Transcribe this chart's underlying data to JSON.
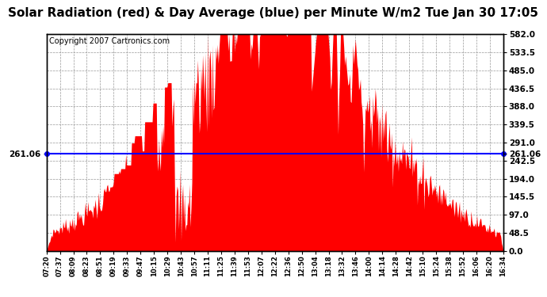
{
  "title": "Solar Radiation (red) & Day Average (blue) per Minute W/m2 Tue Jan 30 17:05",
  "copyright": "Copyright 2007 Cartronics.com",
  "y_left_label": "261.06",
  "y_right_label": "261.06",
  "y_right_ticks": [
    0.0,
    48.5,
    97.0,
    145.5,
    194.0,
    242.5,
    291.0,
    339.5,
    388.0,
    436.5,
    485.0,
    533.5,
    582.0
  ],
  "y_max": 582.0,
  "y_min": 0.0,
  "day_average": 261.06,
  "bar_color": "#FF0000",
  "average_line_color": "#0000FF",
  "background_color": "#FFFFFF",
  "plot_bg_color": "#FFFFFF",
  "grid_color": "#999999",
  "title_fontsize": 11,
  "copyright_fontsize": 7,
  "x_labels": [
    "07:20",
    "07:37",
    "08:09",
    "08:23",
    "08:51",
    "09:19",
    "09:33",
    "09:47",
    "10:15",
    "10:29",
    "10:43",
    "10:57",
    "11:11",
    "11:25",
    "11:39",
    "11:53",
    "12:07",
    "12:22",
    "12:36",
    "12:50",
    "13:04",
    "13:18",
    "13:32",
    "13:46",
    "14:00",
    "14:14",
    "14:28",
    "14:42",
    "15:10",
    "15:24",
    "15:38",
    "15:52",
    "16:06",
    "16:20",
    "16:34"
  ]
}
